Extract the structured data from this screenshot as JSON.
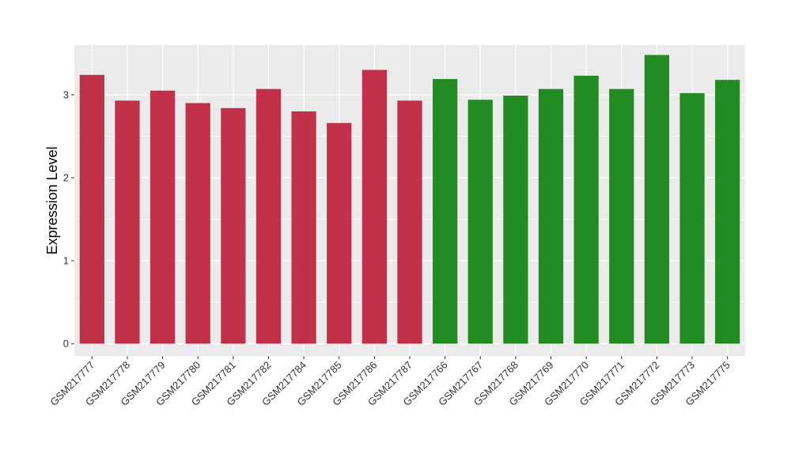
{
  "chart_data": {
    "type": "bar",
    "title": "",
    "xlabel": "",
    "ylabel": "Expression Level",
    "ylim": [
      -0.15,
      3.6
    ],
    "yticks": [
      0,
      1,
      2,
      3
    ],
    "grid": true,
    "legend": "none",
    "categories": [
      "GSM217777",
      "GSM217778",
      "GSM217779",
      "GSM217780",
      "GSM217781",
      "GSM217782",
      "GSM217784",
      "GSM217785",
      "GSM217786",
      "GSM217787",
      "GSM217766",
      "GSM217767",
      "GSM217768",
      "GSM217769",
      "GSM217770",
      "GSM217771",
      "GSM217772",
      "GSM217773",
      "GSM217775"
    ],
    "values": [
      3.24,
      2.93,
      3.05,
      2.9,
      2.84,
      3.07,
      2.8,
      2.66,
      3.3,
      2.93,
      3.19,
      2.94,
      2.99,
      3.07,
      3.23,
      3.07,
      3.48,
      3.02,
      3.18
    ],
    "groups": [
      "red",
      "red",
      "red",
      "red",
      "red",
      "red",
      "red",
      "red",
      "red",
      "red",
      "green",
      "green",
      "green",
      "green",
      "green",
      "green",
      "green",
      "green",
      "green"
    ],
    "colors": {
      "red": "#C3304A",
      "green": "#228B22",
      "panel": "#EBEBEB",
      "grid": "#FFFFFF"
    }
  }
}
